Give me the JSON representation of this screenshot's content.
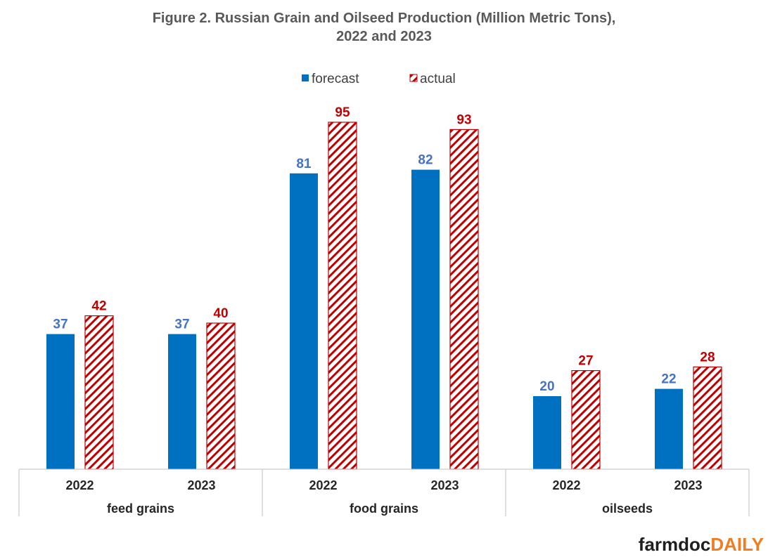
{
  "chart_data": {
    "type": "bar",
    "title_line1": "Figure 2.  Russian Grain and Oilseed Production (Million Metric Tons),",
    "title_line2": "2022 and 2023",
    "groups": [
      "feed grains",
      "food grains",
      "oilseeds"
    ],
    "categories": [
      "2022",
      "2023",
      "2022",
      "2023",
      "2022",
      "2023"
    ],
    "series": [
      {
        "name": "forecast",
        "color": "#0070c0",
        "values": [
          37,
          37,
          81,
          82,
          20,
          22
        ]
      },
      {
        "name": "actual",
        "color": "#c00000",
        "pattern": "diagonal-hatch",
        "values": [
          42,
          40,
          95,
          93,
          27,
          28
        ]
      }
    ],
    "ylim": [
      0,
      100
    ],
    "grid": false,
    "legend_position": "top-center"
  },
  "logo": {
    "part1": "farmdoc",
    "part2": "DAILY"
  }
}
